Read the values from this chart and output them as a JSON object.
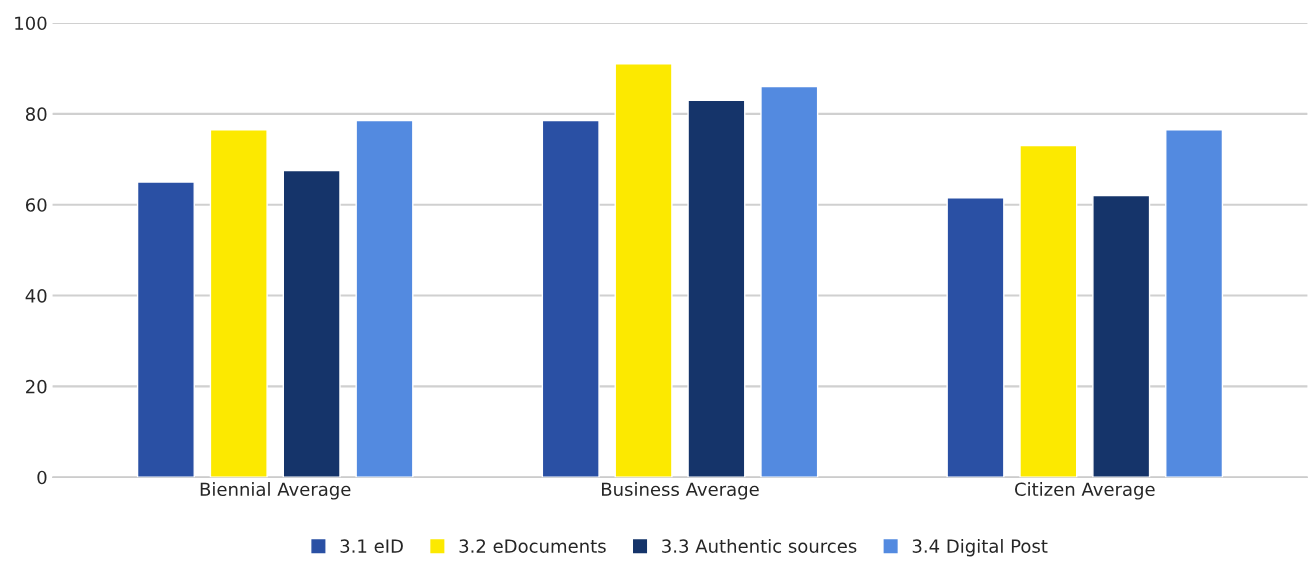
{
  "chart_data": {
    "type": "bar",
    "categories": [
      "Biennial Average",
      "Business Average",
      "Citizen Average"
    ],
    "series": [
      {
        "name": "3.1 eID",
        "color": "#2a50a4",
        "values": [
          65,
          78.5,
          61.5
        ]
      },
      {
        "name": "3.2 eDocuments",
        "color": "#fce900",
        "values": [
          76.5,
          91,
          73
        ]
      },
      {
        "name": "3.3 Authentic sources",
        "color": "#15346a",
        "values": [
          67.5,
          83,
          62
        ]
      },
      {
        "name": "3.4 Digital Post",
        "color": "#538ae0",
        "values": [
          78.5,
          86,
          76.5
        ]
      }
    ],
    "ylim": [
      0,
      100
    ],
    "yticks": [
      0,
      20,
      40,
      60,
      80,
      100
    ],
    "grid": "y",
    "legend": "bottom"
  }
}
